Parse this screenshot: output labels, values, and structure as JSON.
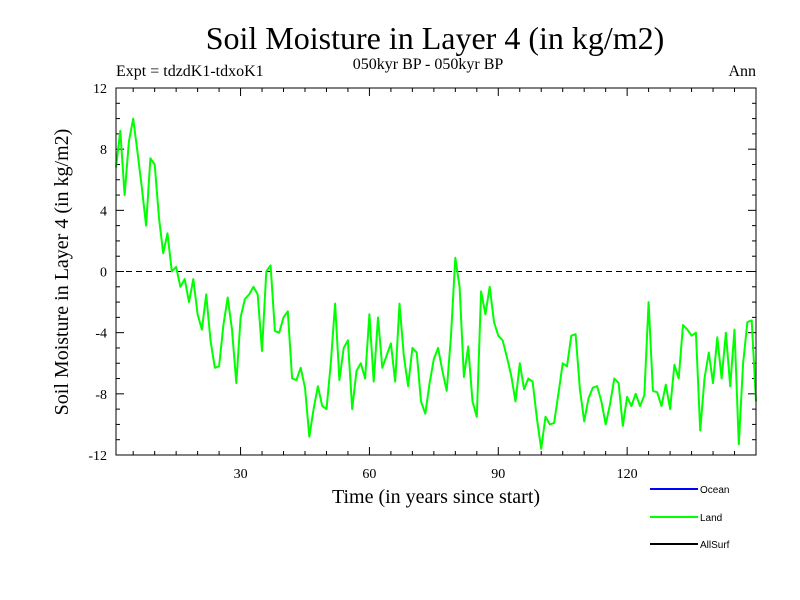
{
  "chart_data": {
    "type": "line",
    "title": "Soil Moisture in Layer 4 (in kg/m2)",
    "subtitle": "050kyr BP - 050kyr BP",
    "experiment": "Expt = tdzdK1-tdxoK1",
    "season": "Ann",
    "xlabel": "Time (in years since start)",
    "ylabel": "Soil Moisture in Layer 4 (in kg/m2)",
    "xlim": [
      1,
      150
    ],
    "ylim": [
      -12,
      12
    ],
    "xticks": [
      30,
      60,
      90,
      120
    ],
    "yticks": [
      -12,
      -8,
      -4,
      0,
      4,
      8,
      12
    ],
    "xtick_labels": [
      "30",
      "60",
      "90",
      "120"
    ],
    "ytick_labels": [
      "-12",
      "-8",
      "-4",
      "0",
      "4",
      "8",
      "12"
    ],
    "zero_line": "dashed",
    "legend": [
      {
        "name": "Ocean",
        "color": "#0000ff"
      },
      {
        "name": "Land",
        "color": "#00ff00"
      },
      {
        "name": "AllSurf",
        "color": "#000000"
      }
    ],
    "series": [
      {
        "name": "Land",
        "color": "#00ff00",
        "x_start": 1,
        "x_step": 1,
        "values": [
          6.8,
          9.2,
          5.0,
          8.5,
          10.0,
          7.8,
          5.5,
          3.0,
          7.4,
          7.0,
          3.5,
          1.2,
          2.5,
          0.0,
          0.3,
          -1.0,
          -0.5,
          -2.0,
          -0.5,
          -2.8,
          -3.8,
          -1.5,
          -4.5,
          -6.3,
          -6.2,
          -3.5,
          -1.7,
          -3.8,
          -7.3,
          -3.0,
          -1.8,
          -1.5,
          -1.0,
          -1.5,
          -5.2,
          0.0,
          0.4,
          -3.9,
          -4.0,
          -3.0,
          -2.6,
          -7.0,
          -7.1,
          -6.3,
          -7.6,
          -10.8,
          -9.0,
          -7.5,
          -8.8,
          -9.0,
          -6.0,
          -2.1,
          -7.1,
          -5.0,
          -4.5,
          -9.0,
          -6.5,
          -6.0,
          -7.0,
          -2.8,
          -7.2,
          -3.0,
          -6.3,
          -5.5,
          -4.7,
          -7.2,
          -2.1,
          -5.5,
          -7.5,
          -5.0,
          -5.3,
          -8.5,
          -9.3,
          -7.3,
          -5.7,
          -5.0,
          -6.5,
          -7.8,
          -4.2,
          0.9,
          -1.0,
          -6.9,
          -4.9,
          -8.5,
          -9.5,
          -1.3,
          -2.8,
          -1.0,
          -3.3,
          -4.2,
          -4.5,
          -5.6,
          -6.8,
          -8.5,
          -6.0,
          -7.7,
          -7.0,
          -7.2,
          -9.6,
          -11.6,
          -9.5,
          -10.0,
          -9.9,
          -8.0,
          -6.0,
          -6.2,
          -4.2,
          -4.1,
          -7.7,
          -9.8,
          -8.3,
          -7.6,
          -7.5,
          -8.5,
          -10.0,
          -8.7,
          -7.0,
          -7.3,
          -10.1,
          -8.2,
          -8.8,
          -8.0,
          -8.8,
          -8.1,
          -2.0,
          -7.8,
          -7.9,
          -8.8,
          -7.4,
          -9.0,
          -6.1,
          -7.0,
          -3.5,
          -3.8,
          -4.2,
          -4.0,
          -10.4,
          -7.0,
          -5.3,
          -7.3,
          -4.3,
          -7.0,
          -4.0,
          -7.5,
          -3.8,
          -11.3,
          -6.0,
          -3.3,
          -3.2,
          -8.5
        ]
      }
    ]
  }
}
